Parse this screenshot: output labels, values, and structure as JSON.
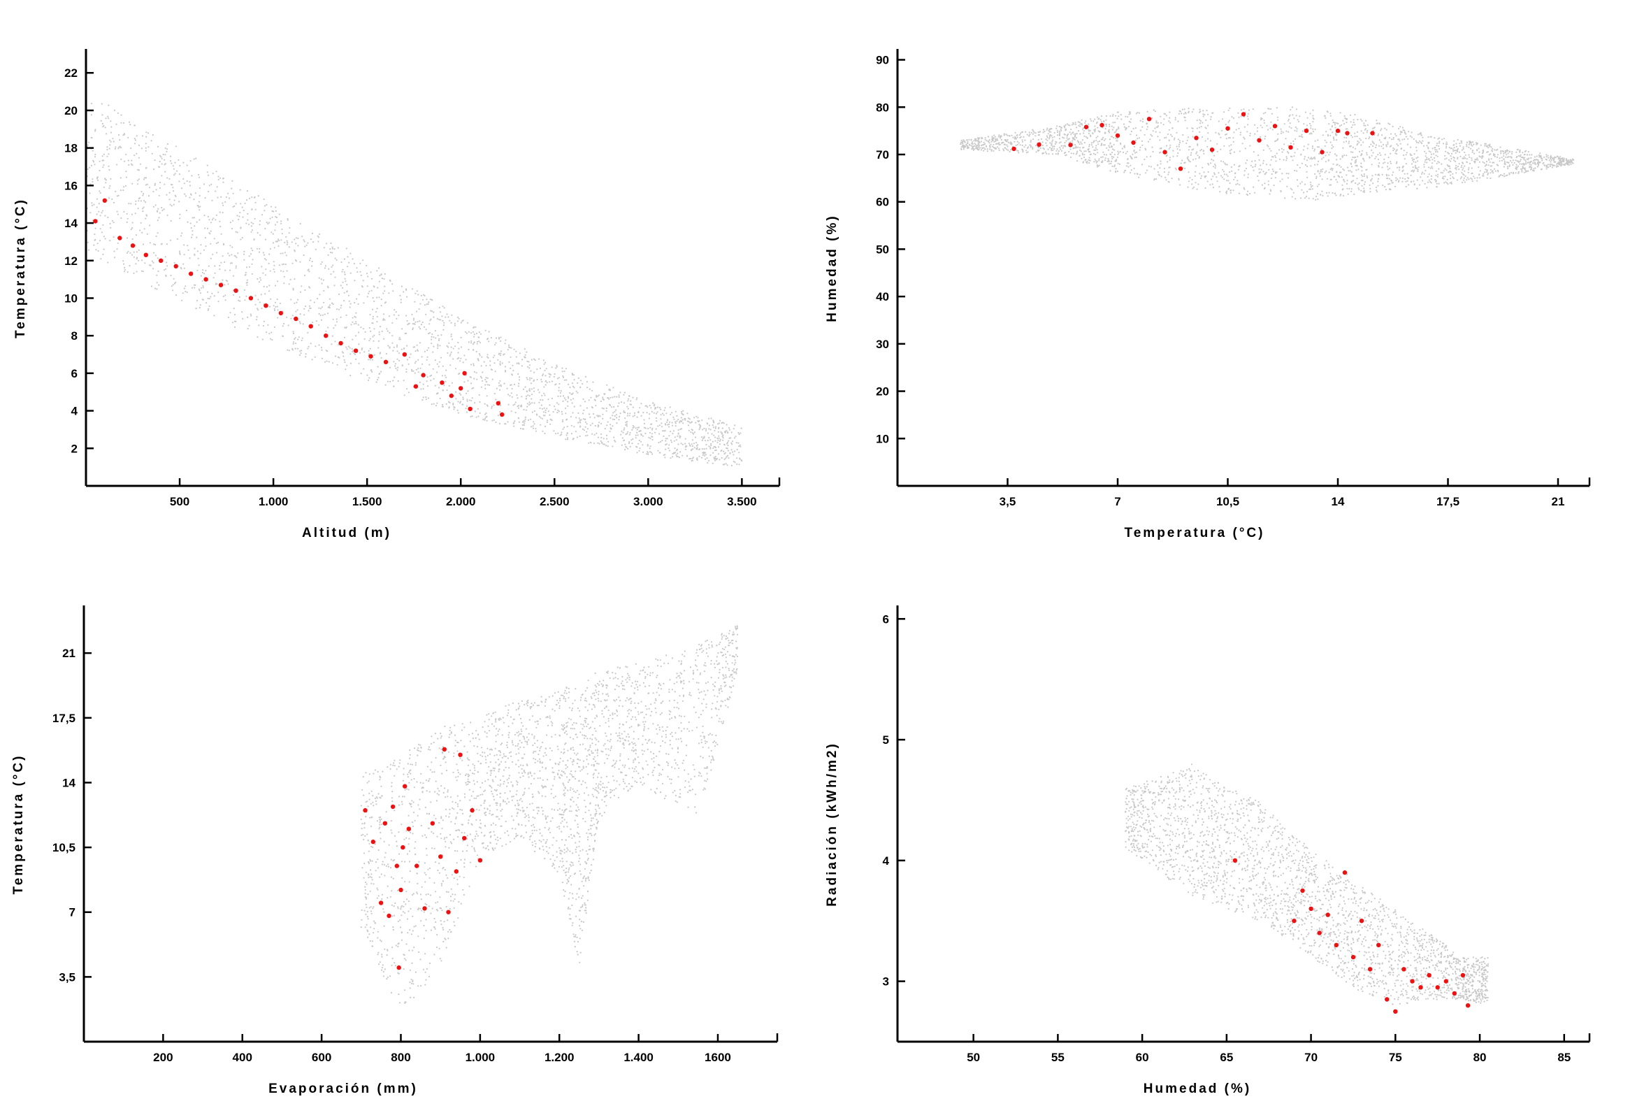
{
  "figure": {
    "colors": {
      "background_points": "#c8c8c8",
      "observed_points": "#ee1111",
      "axes": "#000000"
    }
  },
  "chart_data": [
    {
      "id": "panel-a",
      "type": "scatter",
      "xlabel": "Altitud (m)",
      "ylabel": "Temperatura (°C)",
      "xlim": [
        0,
        3700
      ],
      "ylim": [
        0,
        23.2
      ],
      "xticks": [
        {
          "v": 500,
          "label": "500"
        },
        {
          "v": 1000,
          "label": "1.000"
        },
        {
          "v": 1500,
          "label": "1.500"
        },
        {
          "v": 2000,
          "label": "2.000"
        },
        {
          "v": 2500,
          "label": "2.500"
        },
        {
          "v": 3000,
          "label": "3.000"
        },
        {
          "v": 3500,
          "label": "3.500"
        }
      ],
      "yticks": [
        {
          "v": 2,
          "label": "2"
        },
        {
          "v": 4,
          "label": "4"
        },
        {
          "v": 6,
          "label": "6"
        },
        {
          "v": 8,
          "label": "8"
        },
        {
          "v": 10,
          "label": "10"
        },
        {
          "v": 12,
          "label": "12"
        },
        {
          "v": 14,
          "label": "14"
        },
        {
          "v": 16,
          "label": "16"
        },
        {
          "v": 18,
          "label": "18"
        },
        {
          "v": 20,
          "label": "20"
        },
        {
          "v": 22,
          "label": "22"
        }
      ],
      "grid": false,
      "series": [
        {
          "role": "background",
          "color": "#c8c8c8",
          "bands": [
            [
              0,
              12.5,
              21
            ],
            [
              500,
              9.8,
              18
            ],
            [
              1000,
              7.5,
              15
            ],
            [
              1500,
              5.5,
              12
            ],
            [
              2000,
              3.8,
              9
            ],
            [
              2500,
              2.6,
              6.5
            ],
            [
              3000,
              1.6,
              4.5
            ],
            [
              3500,
              1.0,
              3.2
            ]
          ]
        },
        {
          "role": "observed",
          "color": "#ee1111",
          "points": [
            [
              50,
              14.1
            ],
            [
              100,
              15.2
            ],
            [
              180,
              13.2
            ],
            [
              250,
              12.8
            ],
            [
              320,
              12.3
            ],
            [
              400,
              12.0
            ],
            [
              480,
              11.7
            ],
            [
              560,
              11.3
            ],
            [
              640,
              11.0
            ],
            [
              720,
              10.7
            ],
            [
              800,
              10.4
            ],
            [
              880,
              10.0
            ],
            [
              960,
              9.6
            ],
            [
              1040,
              9.2
            ],
            [
              1120,
              8.9
            ],
            [
              1200,
              8.5
            ],
            [
              1280,
              8.0
            ],
            [
              1360,
              7.6
            ],
            [
              1440,
              7.2
            ],
            [
              1520,
              6.9
            ],
            [
              1600,
              6.6
            ],
            [
              1700,
              7.0
            ],
            [
              1760,
              5.3
            ],
            [
              1800,
              5.9
            ],
            [
              1900,
              5.5
            ],
            [
              1950,
              4.8
            ],
            [
              2000,
              5.2
            ],
            [
              2020,
              6.0
            ],
            [
              2050,
              4.1
            ],
            [
              2200,
              4.4
            ],
            [
              2220,
              3.8
            ]
          ]
        }
      ]
    },
    {
      "id": "panel-b",
      "type": "scatter",
      "xlabel": "Temperatura (°C)",
      "ylabel": "Humedad (%)",
      "xlim": [
        0,
        22
      ],
      "ylim": [
        0,
        92
      ],
      "xticks": [
        {
          "v": 3.5,
          "label": "3,5"
        },
        {
          "v": 7,
          "label": "7"
        },
        {
          "v": 10.5,
          "label": "10,5"
        },
        {
          "v": 14,
          "label": "14"
        },
        {
          "v": 17.5,
          "label": "17,5"
        },
        {
          "v": 21,
          "label": "21"
        }
      ],
      "yticks": [
        {
          "v": 10,
          "label": "10"
        },
        {
          "v": 20,
          "label": "20"
        },
        {
          "v": 30,
          "label": "30"
        },
        {
          "v": 40,
          "label": "40"
        },
        {
          "v": 50,
          "label": "50"
        },
        {
          "v": 60,
          "label": "60"
        },
        {
          "v": 70,
          "label": "70"
        },
        {
          "v": 80,
          "label": "80"
        },
        {
          "v": 90,
          "label": "90"
        }
      ],
      "grid": false,
      "series": [
        {
          "role": "background",
          "color": "#c8c8c8",
          "bands": [
            [
              2,
              71,
              73
            ],
            [
              5,
              70,
              76
            ],
            [
              7,
              66,
              79
            ],
            [
              10,
              62,
              80
            ],
            [
              13,
              60,
              80
            ],
            [
              15,
              62,
              78
            ],
            [
              17,
              63,
              74
            ],
            [
              19,
              65,
              72
            ],
            [
              21.5,
              68,
              69
            ]
          ]
        },
        {
          "role": "observed",
          "color": "#ee1111",
          "points": [
            [
              3.7,
              71.2
            ],
            [
              4.5,
              72.1
            ],
            [
              5.5,
              72.0
            ],
            [
              6.0,
              75.8
            ],
            [
              6.5,
              76.2
            ],
            [
              7.0,
              74.0
            ],
            [
              7.5,
              72.5
            ],
            [
              8.0,
              77.5
            ],
            [
              8.5,
              70.5
            ],
            [
              9.0,
              67.0
            ],
            [
              9.5,
              73.5
            ],
            [
              10.0,
              71.0
            ],
            [
              10.5,
              75.5
            ],
            [
              11.0,
              78.5
            ],
            [
              11.5,
              73.0
            ],
            [
              12.0,
              76.0
            ],
            [
              12.5,
              71.5
            ],
            [
              13.0,
              75.0
            ],
            [
              13.5,
              70.5
            ],
            [
              14.0,
              75.0
            ],
            [
              14.3,
              74.5
            ],
            [
              15.1,
              74.5
            ]
          ]
        }
      ]
    },
    {
      "id": "panel-c",
      "type": "scatter",
      "xlabel": "Evaporación (mm)",
      "ylabel": "Temperatura (°C)",
      "xlim": [
        0,
        1750
      ],
      "ylim": [
        0,
        23.5
      ],
      "xticks": [
        {
          "v": 200,
          "label": "200"
        },
        {
          "v": 400,
          "label": "400"
        },
        {
          "v": 600,
          "label": "600"
        },
        {
          "v": 800,
          "label": "800"
        },
        {
          "v": 1000,
          "label": "1.000"
        },
        {
          "v": 1200,
          "label": "1.200"
        },
        {
          "v": 1400,
          "label": "1.400"
        },
        {
          "v": 1600,
          "label": "1600"
        }
      ],
      "yticks": [
        {
          "v": 3.5,
          "label": "3,5"
        },
        {
          "v": 7,
          "label": "7"
        },
        {
          "v": 10.5,
          "label": "10,5"
        },
        {
          "v": 14,
          "label": "14"
        },
        {
          "v": 17.5,
          "label": "17,5"
        },
        {
          "v": 21,
          "label": "21"
        }
      ],
      "grid": false,
      "series": [
        {
          "role": "background",
          "color": "#c8c8c8",
          "bands": [
            [
              700,
              6,
              14.5
            ],
            [
              800,
              1.5,
              15.5
            ],
            [
              900,
              4,
              17
            ],
            [
              1000,
              10,
              17.5
            ],
            [
              1100,
              11,
              18.5
            ],
            [
              1200,
              9,
              19
            ],
            [
              1250,
              4,
              19.5
            ],
            [
              1300,
              12,
              20
            ],
            [
              1400,
              14,
              20.5
            ],
            [
              1550,
              12,
              21.5
            ],
            [
              1650,
              20,
              22.5
            ]
          ]
        },
        {
          "role": "observed",
          "color": "#ee1111",
          "points": [
            [
              710,
              12.5
            ],
            [
              730,
              10.8
            ],
            [
              750,
              7.5
            ],
            [
              760,
              11.8
            ],
            [
              770,
              6.8
            ],
            [
              780,
              12.7
            ],
            [
              790,
              9.5
            ],
            [
              795,
              4.0
            ],
            [
              800,
              8.2
            ],
            [
              805,
              10.5
            ],
            [
              810,
              13.8
            ],
            [
              820,
              11.5
            ],
            [
              840,
              9.5
            ],
            [
              860,
              7.2
            ],
            [
              880,
              11.8
            ],
            [
              900,
              10.0
            ],
            [
              920,
              7.0
            ],
            [
              940,
              9.2
            ],
            [
              960,
              11.0
            ],
            [
              980,
              12.5
            ],
            [
              1000,
              9.8
            ],
            [
              910,
              15.8
            ],
            [
              950,
              15.5
            ]
          ]
        }
      ]
    },
    {
      "id": "panel-d",
      "type": "scatter",
      "xlabel": "Humedad (%)",
      "ylabel": "Radiación (kWh/m2)",
      "xlim": [
        45.5,
        86.5
      ],
      "ylim": [
        2.5,
        6.1
      ],
      "xticks": [
        {
          "v": 50,
          "label": "50"
        },
        {
          "v": 55,
          "label": "55"
        },
        {
          "v": 60,
          "label": "60"
        },
        {
          "v": 65,
          "label": "65"
        },
        {
          "v": 70,
          "label": "70"
        },
        {
          "v": 75,
          "label": "75"
        },
        {
          "v": 80,
          "label": "80"
        },
        {
          "v": 85,
          "label": "85"
        }
      ],
      "yticks": [
        {
          "v": 3,
          "label": "3"
        },
        {
          "v": 4,
          "label": "4"
        },
        {
          "v": 5,
          "label": "5"
        },
        {
          "v": 6,
          "label": "6"
        }
      ],
      "grid": false,
      "series": [
        {
          "role": "background",
          "color": "#c8c8c8",
          "bands": [
            [
              59,
              4.1,
              4.6
            ],
            [
              61,
              3.9,
              4.7
            ],
            [
              63,
              3.7,
              4.8
            ],
            [
              65,
              3.6,
              4.6
            ],
            [
              67,
              3.5,
              4.5
            ],
            [
              69,
              3.3,
              4.2
            ],
            [
              71,
              3.1,
              4.0
            ],
            [
              73,
              2.9,
              3.8
            ],
            [
              75,
              2.8,
              3.6
            ],
            [
              77,
              2.85,
              3.4
            ],
            [
              79,
              2.85,
              3.2
            ],
            [
              80.5,
              2.8,
              3.2
            ]
          ]
        },
        {
          "role": "observed",
          "color": "#ee1111",
          "points": [
            [
              65.5,
              4.0
            ],
            [
              69.0,
              3.5
            ],
            [
              69.5,
              3.75
            ],
            [
              70.0,
              3.6
            ],
            [
              70.5,
              3.4
            ],
            [
              71.0,
              3.55
            ],
            [
              71.5,
              3.3
            ],
            [
              72.0,
              3.9
            ],
            [
              72.5,
              3.2
            ],
            [
              73.0,
              3.5
            ],
            [
              73.5,
              3.1
            ],
            [
              74.0,
              3.3
            ],
            [
              74.5,
              2.85
            ],
            [
              75.0,
              2.75
            ],
            [
              75.5,
              3.1
            ],
            [
              76.0,
              3.0
            ],
            [
              76.5,
              2.95
            ],
            [
              77.0,
              3.05
            ],
            [
              77.5,
              2.95
            ],
            [
              78.0,
              3.0
            ],
            [
              78.5,
              2.9
            ],
            [
              79.0,
              3.05
            ],
            [
              79.3,
              2.8
            ]
          ]
        }
      ]
    }
  ]
}
